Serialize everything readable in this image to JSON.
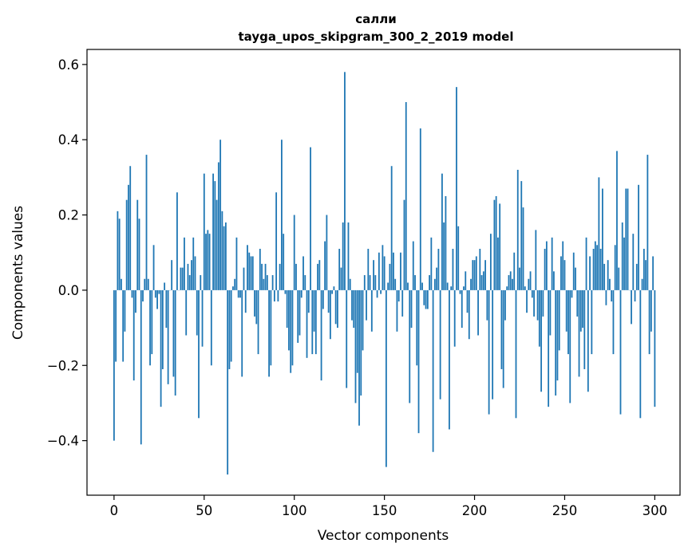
{
  "chart_data": {
    "type": "bar",
    "title": "салли",
    "subtitle": "tayga_upos_skipgram_300_2_2019 model",
    "xlabel": "Vector components",
    "ylabel": "Components values",
    "xlim": [
      -15,
      314
    ],
    "ylim": [
      -0.545,
      0.64
    ],
    "xticks": [
      0,
      50,
      100,
      150,
      200,
      250,
      300
    ],
    "yticks": [
      -0.4,
      -0.2,
      0.0,
      0.2,
      0.4,
      0.6
    ],
    "ytick_labels": [
      "−0.4",
      "−0.2",
      "0.0",
      "0.2",
      "0.4",
      "0.6"
    ],
    "bar_color": "#1f77b4",
    "values": [
      -0.4,
      -0.19,
      0.21,
      0.19,
      0.03,
      -0.19,
      -0.11,
      0.24,
      0.28,
      0.33,
      -0.02,
      -0.24,
      -0.06,
      0.24,
      0.19,
      -0.41,
      -0.03,
      0.03,
      0.36,
      0.03,
      -0.2,
      -0.17,
      0.12,
      -0.02,
      -0.05,
      -0.01,
      -0.31,
      -0.21,
      0.02,
      -0.1,
      -0.25,
      0.0,
      0.08,
      -0.23,
      -0.28,
      0.26,
      0.0,
      0.06,
      0.06,
      0.14,
      -0.12,
      0.07,
      0.04,
      0.08,
      0.14,
      0.09,
      -0.12,
      -0.34,
      0.04,
      -0.15,
      0.31,
      0.15,
      0.16,
      0.15,
      -0.2,
      0.31,
      0.29,
      0.24,
      0.34,
      0.4,
      0.21,
      0.17,
      0.18,
      -0.49,
      -0.21,
      -0.19,
      0.01,
      0.03,
      0.14,
      -0.02,
      -0.02,
      -0.23,
      0.06,
      -0.06,
      0.12,
      0.1,
      0.09,
      0.09,
      -0.07,
      -0.09,
      -0.17,
      0.11,
      0.07,
      0.03,
      0.07,
      0.04,
      -0.23,
      -0.2,
      0.04,
      -0.03,
      0.26,
      -0.03,
      0.07,
      0.4,
      0.15,
      -0.01,
      -0.1,
      -0.16,
      -0.22,
      -0.2,
      0.2,
      0.07,
      -0.14,
      -0.12,
      -0.02,
      0.09,
      0.04,
      -0.18,
      -0.06,
      0.38,
      -0.17,
      -0.11,
      -0.17,
      0.07,
      0.08,
      -0.24,
      -0.05,
      0.13,
      0.2,
      -0.06,
      -0.13,
      -0.01,
      0.01,
      -0.09,
      -0.1,
      0.11,
      0.06,
      0.18,
      0.58,
      -0.26,
      0.18,
      0.03,
      -0.08,
      -0.1,
      -0.3,
      -0.22,
      -0.36,
      -0.28,
      -0.16,
      0.04,
      -0.08,
      0.11,
      0.04,
      -0.11,
      0.08,
      0.04,
      -0.02,
      0.1,
      -0.01,
      0.12,
      0.09,
      -0.47,
      0.02,
      0.07,
      0.33,
      0.1,
      0.03,
      -0.11,
      -0.03,
      0.1,
      -0.07,
      0.24,
      0.5,
      0.02,
      -0.3,
      -0.1,
      0.13,
      0.04,
      -0.2,
      -0.38,
      0.43,
      0.02,
      -0.04,
      -0.05,
      -0.05,
      0.04,
      0.14,
      -0.43,
      0.03,
      0.06,
      0.11,
      -0.29,
      0.31,
      0.18,
      0.25,
      0.02,
      -0.37,
      0.01,
      0.11,
      -0.15,
      0.54,
      0.17,
      -0.01,
      -0.1,
      0.01,
      0.05,
      -0.06,
      -0.13,
      0.03,
      0.08,
      0.08,
      0.09,
      -0.12,
      0.11,
      0.04,
      0.05,
      0.08,
      -0.08,
      -0.33,
      0.15,
      -0.29,
      0.24,
      0.25,
      0.14,
      0.23,
      -0.21,
      -0.26,
      -0.08,
      0.01,
      0.04,
      0.05,
      0.03,
      0.1,
      -0.34,
      0.32,
      0.06,
      0.29,
      0.22,
      0.01,
      -0.06,
      0.03,
      0.05,
      -0.02,
      -0.07,
      0.16,
      -0.08,
      -0.15,
      -0.27,
      -0.07,
      0.11,
      0.13,
      -0.31,
      -0.12,
      0.14,
      0.05,
      -0.28,
      -0.24,
      -0.16,
      0.09,
      0.13,
      0.08,
      -0.11,
      -0.17,
      -0.3,
      -0.02,
      0.1,
      0.06,
      -0.07,
      -0.23,
      -0.11,
      -0.1,
      -0.21,
      0.14,
      -0.27,
      0.09,
      -0.17,
      0.11,
      0.13,
      0.12,
      0.3,
      0.11,
      0.27,
      0.07,
      -0.04,
      0.08,
      0.03,
      -0.03,
      -0.17,
      0.12,
      0.37,
      0.06,
      -0.33,
      0.18,
      0.14,
      0.27,
      0.27,
      0.0,
      -0.09,
      0.15,
      -0.03,
      0.07,
      0.28,
      -0.34,
      0.03,
      0.11,
      0.08,
      0.36,
      -0.17,
      -0.11,
      0.09,
      -0.31
    ]
  }
}
